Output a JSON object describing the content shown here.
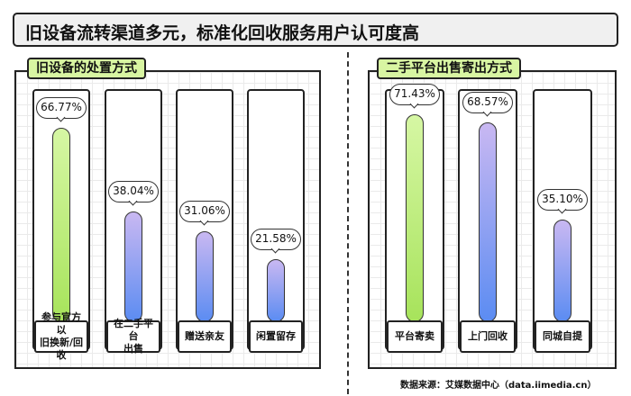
{
  "title": "旧设备流转渠道多元，标准化回收服务用户认可度高",
  "source": "数据来源：艾媒数据中心（data.iimedia.cn）",
  "colors": {
    "highlight_bar": "#b5e86b",
    "bar": "#7f9cf5",
    "panel_title_bg": "#d8f5a2"
  },
  "chart_data": [
    {
      "type": "bar",
      "title": "旧设备的处置方式",
      "categories": [
        "参与官方以旧换新/回收",
        "在二手平台出售",
        "赠送亲友",
        "闲置留存"
      ],
      "category_lines": [
        [
          "参与官方以",
          "旧换新/回收"
        ],
        [
          "在二手平台",
          "出售"
        ],
        [
          "赠送亲友"
        ],
        [
          "闲置留存"
        ]
      ],
      "values": [
        66.77,
        38.04,
        31.06,
        21.58
      ],
      "labels": [
        "66.77%",
        "38.04%",
        "31.06%",
        "21.58%"
      ],
      "unit": "%"
    },
    {
      "type": "bar",
      "title": "二手平台出售寄出方式",
      "categories": [
        "平台寄卖",
        "上门回收",
        "同城自提"
      ],
      "category_lines": [
        [
          "平台寄卖"
        ],
        [
          "上门回收"
        ],
        [
          "同城自提"
        ]
      ],
      "values": [
        71.43,
        68.57,
        35.1
      ],
      "labels": [
        "71.43%",
        "68.57%",
        "35.10%"
      ],
      "unit": "%"
    }
  ]
}
